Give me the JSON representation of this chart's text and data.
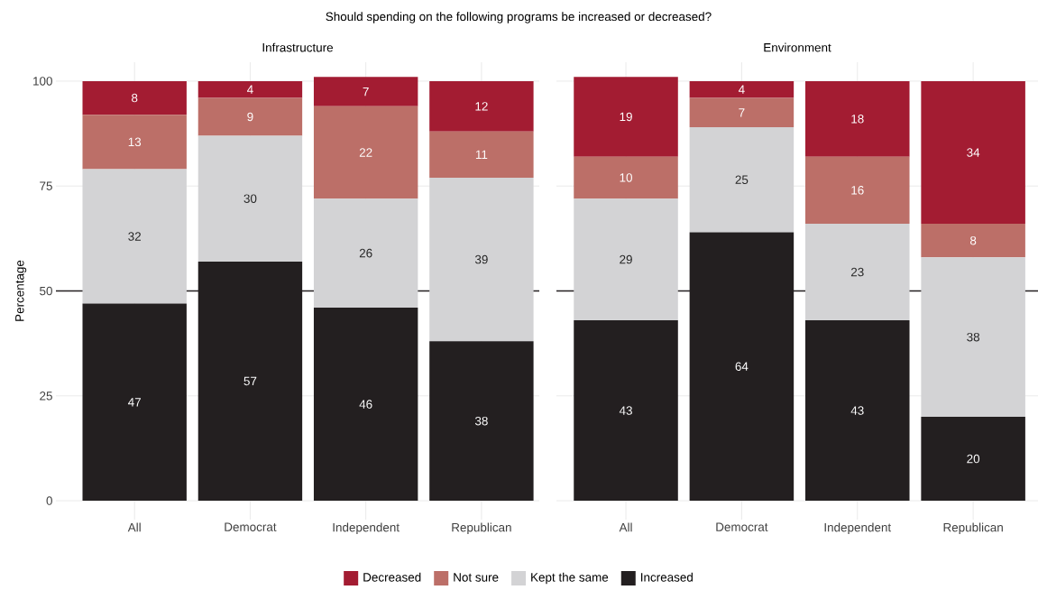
{
  "chart_data": [
    {
      "type": "bar",
      "stacked": true,
      "title": "Infrastructure",
      "ylabel": "Percentage",
      "annotations": [
        "Should spending on the following programs be increased or decreased?"
      ],
      "categories": [
        "All",
        "Democrat",
        "Independent",
        "Republican"
      ],
      "ylim": [
        -4.5,
        104.5
      ],
      "yticks": [
        0,
        25,
        50,
        75,
        100
      ],
      "grid": true,
      "legend": "bottom",
      "data_labels": true,
      "ref_lines": [
        {
          "axis": "y",
          "value": 50,
          "color": "#231f20"
        }
      ],
      "series": [
        {
          "name": "Increased",
          "color": "#231f20",
          "values": [
            47,
            57,
            46,
            38
          ]
        },
        {
          "name": "Kept the same",
          "color": "#d3d3d5",
          "values": [
            32,
            30,
            26,
            39
          ]
        },
        {
          "name": "Not sure",
          "color": "#bc6f68",
          "values": [
            13,
            9,
            22,
            11
          ]
        },
        {
          "name": "Decreased",
          "color": "#a31c32",
          "values": [
            8,
            4,
            7,
            12
          ]
        }
      ]
    },
    {
      "type": "bar",
      "stacked": true,
      "title": "Environment",
      "categories": [
        "All",
        "Democrat",
        "Independent",
        "Republican"
      ],
      "ylim": [
        -4.5,
        104.5
      ],
      "yticks": [
        0,
        25,
        50,
        75,
        100
      ],
      "tick_labels": "x",
      "grid": true,
      "data_labels": true,
      "ref_lines": [
        {
          "axis": "y",
          "value": 50,
          "color": "#231f20"
        }
      ],
      "series": [
        {
          "color": "#231f20",
          "values": [
            43,
            64,
            43,
            20
          ]
        },
        {
          "color": "#d3d3d5",
          "values": [
            29,
            25,
            23,
            38
          ]
        },
        {
          "color": "#bc6f68",
          "values": [
            10,
            7,
            16,
            8
          ]
        },
        {
          "color": "#a31c32",
          "values": [
            19,
            4,
            18,
            34
          ]
        }
      ]
    }
  ]
}
